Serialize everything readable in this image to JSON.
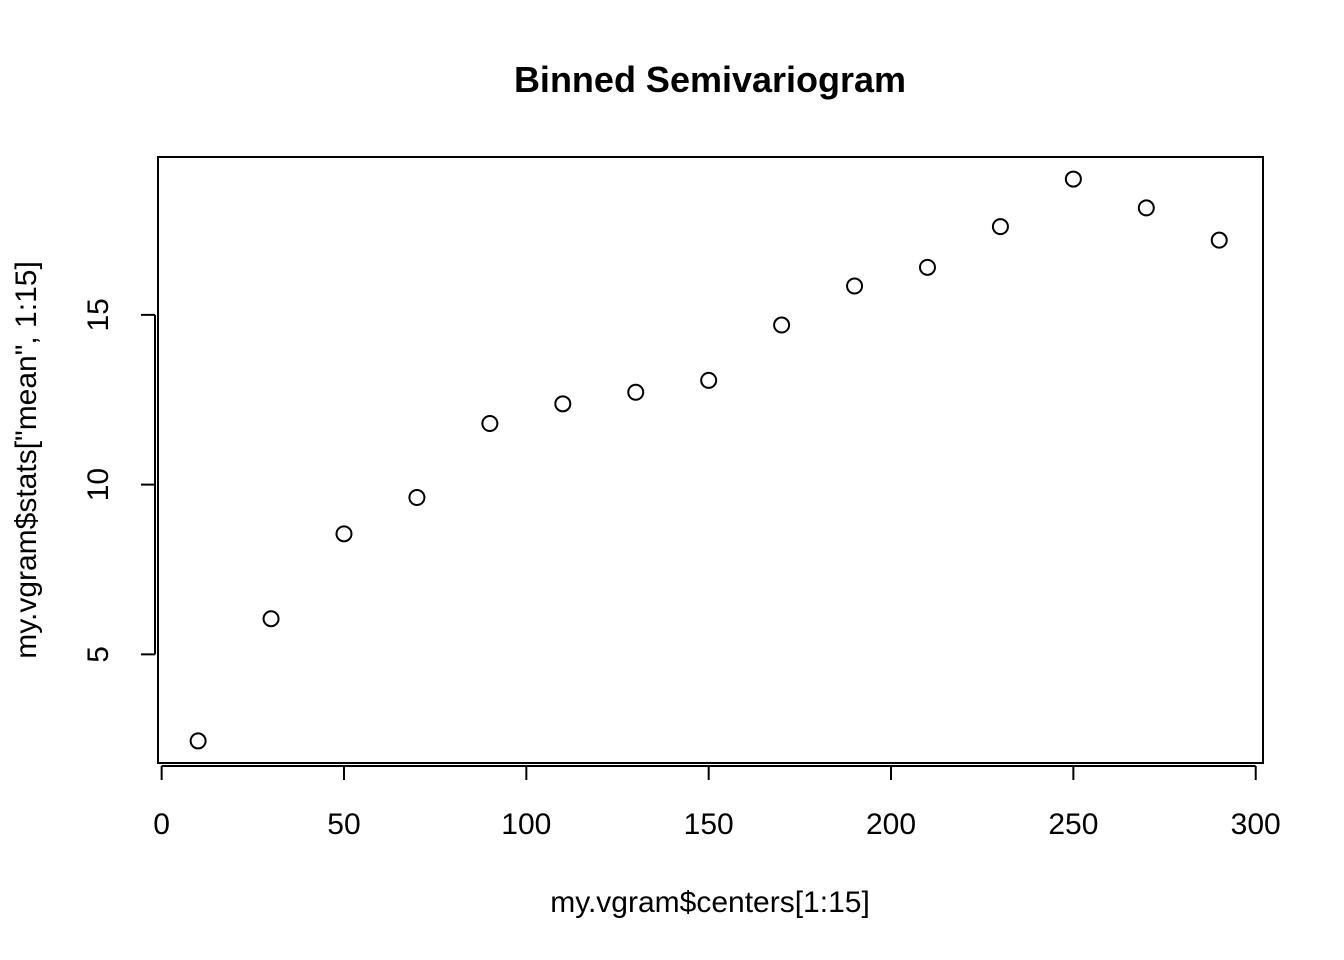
{
  "chart_data": {
    "type": "scatter",
    "title": "Binned Semivariogram",
    "xlabel": "my.vgram$centers[1:15]",
    "ylabel": "my.vgram$stats[\"mean\", 1:15]",
    "xlim": [
      -1,
      302
    ],
    "ylim": [
      1.8,
      19.65
    ],
    "x_ticks": [
      0,
      50,
      100,
      150,
      200,
      250,
      300
    ],
    "x_tick_labels": [
      "0",
      "50",
      "100",
      "150",
      "200",
      "250",
      "300"
    ],
    "y_ticks": [
      5,
      10,
      15
    ],
    "y_tick_labels": [
      "5",
      "10",
      "15"
    ],
    "grid": false,
    "marker": "open-circle",
    "x": [
      10,
      30,
      50,
      70,
      90,
      110,
      130,
      150,
      170,
      190,
      210,
      230,
      250,
      270,
      290
    ],
    "y": [
      2.45,
      6.05,
      8.55,
      9.62,
      11.8,
      12.38,
      12.72,
      13.07,
      14.7,
      15.85,
      16.4,
      17.6,
      19.0,
      18.15,
      17.2
    ]
  }
}
